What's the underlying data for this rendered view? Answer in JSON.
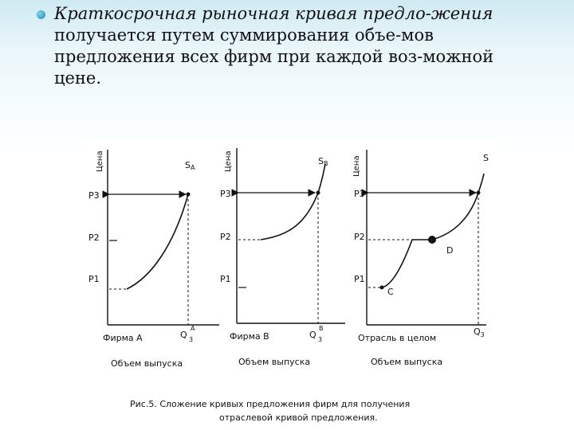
{
  "bullet": {
    "italic_part": "Краткосрочная рыночная кривая предло-жения",
    "lines": [
      "получается путем суммирования объе-мов",
      "предложения всех фирм при каждой воз-можной",
      "цене."
    ]
  },
  "panels": [
    {
      "y_axis_label": "Цена",
      "curve_label": "S",
      "curve_sub": "A",
      "p3": "P3",
      "p2": "P2",
      "p1": "P1",
      "q_label": "Q",
      "q_sup": "A",
      "q_sub": "3",
      "firm_label": "Фирма А",
      "x_axis_label": "Объем выпуска"
    },
    {
      "y_axis_label": "Цена",
      "curve_label": "S",
      "curve_sub": "B",
      "p3": "P3",
      "p2": "P2",
      "p1": "P1",
      "q_label": "Q",
      "q_sup": "B",
      "q_sub": "3",
      "firm_label": "Фирма В",
      "x_axis_label": "Объем выпуска"
    },
    {
      "y_axis_label": "Цена",
      "curve_label": "S",
      "p3": "P3",
      "p2": "P2",
      "p1": "P1",
      "point_c": "C",
      "point_d": "D",
      "q_label": "Q",
      "q_sub": "3",
      "firm_label": "Отрасль в целом",
      "x_axis_label": "Объем выпуска"
    }
  ],
  "caption": {
    "line1": "Рис.5. Сложение кривых предложения фирм для получения",
    "line2": "отраслевой кривой предложения."
  }
}
